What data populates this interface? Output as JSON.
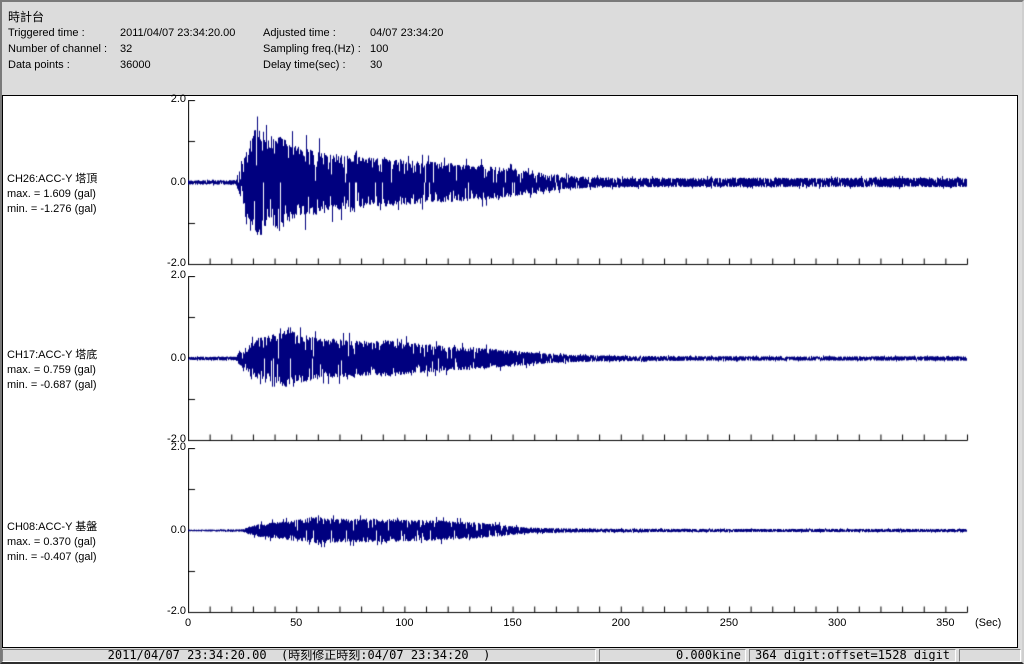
{
  "header": {
    "title": "時計台",
    "triggered_time_label": "Triggered time :",
    "triggered_time": "2011/04/07 23:34:20.00",
    "adjusted_time_label": "Adjusted time :",
    "adjusted_time": "04/07 23:34:20",
    "channels_label": "Number of channel :",
    "channels_value": "32",
    "sampling_label": "Sampling freq.(Hz) :",
    "sampling_value": "100",
    "datapoints_label": "Data points :",
    "datapoints_value": "36000",
    "delay_label": "Delay time(sec) :",
    "delay_value": "30"
  },
  "chart_data": {
    "type": "line",
    "kind": "seismic-acceleration-waveform",
    "duration_sec": 360,
    "line_color": "#00007f",
    "x_axis": {
      "unit_label": "(Sec)",
      "min": 0,
      "max": 360,
      "major_tick": 50,
      "minor_tick": 10,
      "tick_labels": [
        "0",
        "50",
        "100",
        "150",
        "200",
        "250",
        "300",
        "350"
      ]
    },
    "y_axis": {
      "min": -2.0,
      "max": 2.0,
      "unit": "gal",
      "tick_labels": [
        "2.0",
        "0.0",
        "-2.0"
      ],
      "minor_ticks": [
        1.0,
        -1.0
      ]
    },
    "channels": [
      {
        "name": "CH26:ACC-Y 塔頂",
        "max_label": "max. = 1.609 (gal)",
        "min_label": "min. = -1.276 (gal)",
        "max": 1.609,
        "min": -1.276,
        "envelope": [
          [
            0,
            0.05
          ],
          [
            22,
            0.06
          ],
          [
            24,
            0.35
          ],
          [
            27,
            0.8
          ],
          [
            30,
            1.2
          ],
          [
            32,
            1.55
          ],
          [
            34,
            1.2
          ],
          [
            38,
            1.0
          ],
          [
            42,
            1.2
          ],
          [
            47,
            0.95
          ],
          [
            52,
            0.88
          ],
          [
            58,
            0.8
          ],
          [
            68,
            0.7
          ],
          [
            80,
            0.63
          ],
          [
            92,
            0.58
          ],
          [
            104,
            0.53
          ],
          [
            115,
            0.5
          ],
          [
            126,
            0.46
          ],
          [
            136,
            0.43
          ],
          [
            146,
            0.38
          ],
          [
            156,
            0.3
          ],
          [
            166,
            0.22
          ],
          [
            176,
            0.16
          ],
          [
            188,
            0.13
          ],
          [
            200,
            0.12
          ],
          [
            230,
            0.11
          ],
          [
            260,
            0.12
          ],
          [
            290,
            0.11
          ],
          [
            320,
            0.12
          ],
          [
            360,
            0.11
          ]
        ]
      },
      {
        "name": "CH17:ACC-Y 塔底",
        "max_label": "max. = 0.759 (gal)",
        "min_label": "min. = -0.687 (gal)",
        "max": 0.759,
        "min": -0.687,
        "envelope": [
          [
            0,
            0.04
          ],
          [
            22,
            0.05
          ],
          [
            24,
            0.2
          ],
          [
            27,
            0.3
          ],
          [
            32,
            0.5
          ],
          [
            36,
            0.55
          ],
          [
            42,
            0.65
          ],
          [
            47,
            0.72
          ],
          [
            52,
            0.6
          ],
          [
            58,
            0.52
          ],
          [
            65,
            0.48
          ],
          [
            75,
            0.45
          ],
          [
            85,
            0.42
          ],
          [
            92,
            0.45
          ],
          [
            100,
            0.4
          ],
          [
            110,
            0.35
          ],
          [
            120,
            0.3
          ],
          [
            130,
            0.27
          ],
          [
            140,
            0.24
          ],
          [
            150,
            0.2
          ],
          [
            160,
            0.15
          ],
          [
            170,
            0.1
          ],
          [
            180,
            0.09
          ],
          [
            195,
            0.07
          ],
          [
            220,
            0.06
          ],
          [
            260,
            0.055
          ],
          [
            300,
            0.055
          ],
          [
            360,
            0.055
          ]
        ]
      },
      {
        "name": "CH08:ACC-Y 基盤",
        "max_label": "max. = 0.370 (gal)",
        "min_label": "min. = -0.407 (gal)",
        "max": 0.37,
        "min": -0.407,
        "envelope": [
          [
            0,
            0.02
          ],
          [
            25,
            0.03
          ],
          [
            28,
            0.1
          ],
          [
            32,
            0.15
          ],
          [
            36,
            0.18
          ],
          [
            44,
            0.22
          ],
          [
            52,
            0.28
          ],
          [
            60,
            0.33
          ],
          [
            68,
            0.3
          ],
          [
            76,
            0.28
          ],
          [
            85,
            0.3
          ],
          [
            95,
            0.28
          ],
          [
            105,
            0.26
          ],
          [
            115,
            0.25
          ],
          [
            125,
            0.22
          ],
          [
            133,
            0.2
          ],
          [
            141,
            0.17
          ],
          [
            148,
            0.12
          ],
          [
            155,
            0.08
          ],
          [
            165,
            0.06
          ],
          [
            180,
            0.05
          ],
          [
            200,
            0.045
          ],
          [
            240,
            0.04
          ],
          [
            300,
            0.04
          ],
          [
            360,
            0.04
          ]
        ]
      }
    ]
  },
  "status_bar": {
    "segments": [
      {
        "text": "2011/04/07 23:34:20.00  (時刻修正時刻:04/07 23:34:20  )"
      },
      {
        "text": "0.000kine"
      },
      {
        "text": "364 digit:offset=1528 digit"
      },
      {
        "text": ""
      }
    ]
  }
}
